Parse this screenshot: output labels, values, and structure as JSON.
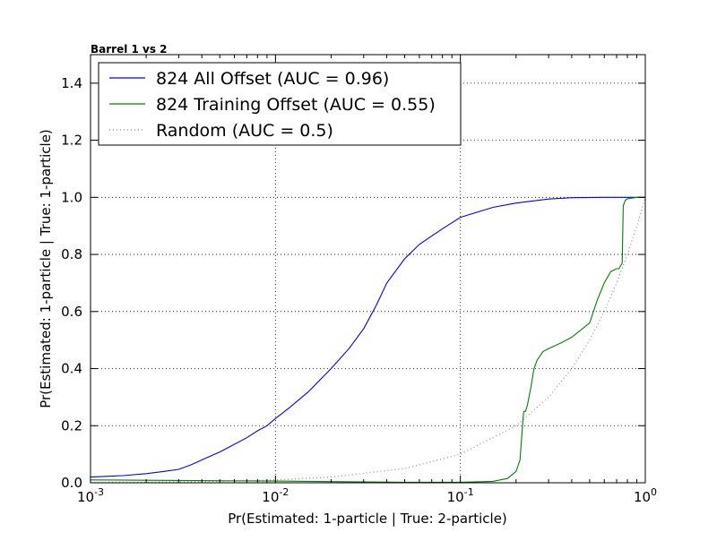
{
  "chart_data": {
    "type": "line",
    "title": "Barrel 1 vs 2",
    "xlabel": "Pr(Estimated: 1-particle | True: 2-particle)",
    "ylabel": "Pr(Estimated: 1-particle | True: 1-particle)",
    "x_scale": "log",
    "xlim": [
      0.001,
      1
    ],
    "ylim": [
      0,
      1.5
    ],
    "grid": true,
    "legend_position": "upper-left",
    "x_ticks": [
      {
        "base": "10",
        "exp": "-3",
        "value": 0.001
      },
      {
        "base": "10",
        "exp": "-2",
        "value": 0.01
      },
      {
        "base": "10",
        "exp": "-1",
        "value": 0.1
      },
      {
        "base": "10",
        "exp": "0",
        "value": 1
      }
    ],
    "y_ticks": [
      {
        "label": "0.0",
        "value": 0.0
      },
      {
        "label": "0.2",
        "value": 0.2
      },
      {
        "label": "0.4",
        "value": 0.4
      },
      {
        "label": "0.6",
        "value": 0.6
      },
      {
        "label": "0.8",
        "value": 0.8
      },
      {
        "label": "1.0",
        "value": 1.0
      },
      {
        "label": "1.2",
        "value": 1.2
      },
      {
        "label": "1.4",
        "value": 1.4
      }
    ],
    "series": [
      {
        "name": "824 All Offset (AUC = 0.96)",
        "color": "#0000ff",
        "style": "solid",
        "x": [
          0.001,
          0.0015,
          0.002,
          0.0025,
          0.003,
          0.0035,
          0.004,
          0.005,
          0.006,
          0.007,
          0.008,
          0.009,
          0.01,
          0.012,
          0.015,
          0.018,
          0.02,
          0.025,
          0.03,
          0.035,
          0.04,
          0.05,
          0.06,
          0.07,
          0.08,
          0.1,
          0.15,
          0.2,
          0.3,
          0.4,
          0.6,
          1.0
        ],
        "y": [
          0.02,
          0.025,
          0.032,
          0.04,
          0.047,
          0.063,
          0.08,
          0.108,
          0.135,
          0.158,
          0.182,
          0.2,
          0.225,
          0.265,
          0.318,
          0.37,
          0.4,
          0.47,
          0.54,
          0.62,
          0.7,
          0.785,
          0.835,
          0.865,
          0.89,
          0.93,
          0.965,
          0.98,
          0.994,
          0.999,
          1.0,
          1.0
        ]
      },
      {
        "name": "824 Training Offset (AUC = 0.55)",
        "color": "#008000",
        "style": "solid",
        "x": [
          0.001,
          0.01,
          0.05,
          0.1,
          0.15,
          0.18,
          0.2,
          0.21,
          0.215,
          0.22,
          0.225,
          0.23,
          0.24,
          0.25,
          0.26,
          0.28,
          0.3,
          0.35,
          0.4,
          0.5,
          0.55,
          0.6,
          0.65,
          0.7,
          0.72,
          0.75,
          0.76,
          0.78,
          0.8,
          0.9,
          1.0
        ],
        "y": [
          0.01,
          0.006,
          0.002,
          0.002,
          0.005,
          0.015,
          0.04,
          0.08,
          0.17,
          0.25,
          0.25,
          0.27,
          0.33,
          0.4,
          0.43,
          0.46,
          0.47,
          0.49,
          0.51,
          0.56,
          0.64,
          0.7,
          0.74,
          0.75,
          0.75,
          0.77,
          0.97,
          0.99,
          0.995,
          1.0,
          1.0
        ]
      },
      {
        "name": "Random (AUC = 0.5)",
        "color": "#808080",
        "style": "dotted",
        "x": [
          0.001,
          0.002,
          0.005,
          0.01,
          0.02,
          0.05,
          0.1,
          0.2,
          0.3,
          0.4,
          0.5,
          0.6,
          0.7,
          0.8,
          0.9,
          1.0
        ],
        "y": [
          0.001,
          0.002,
          0.005,
          0.01,
          0.02,
          0.05,
          0.1,
          0.2,
          0.3,
          0.4,
          0.5,
          0.6,
          0.7,
          0.8,
          0.9,
          1.0
        ]
      }
    ]
  }
}
